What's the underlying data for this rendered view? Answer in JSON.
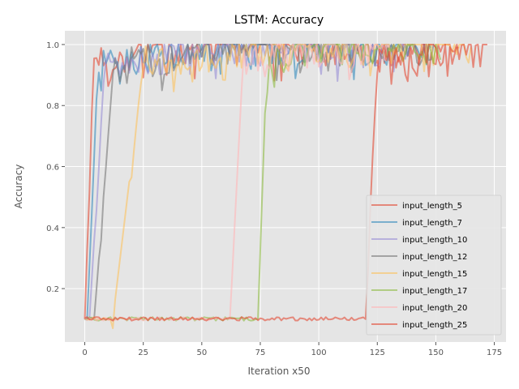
{
  "chart_data": {
    "type": "line",
    "title": "LSTM: Accuracy",
    "xlabel": "Iteration x50",
    "ylabel": "Accuracy",
    "xlim": [
      -8.5,
      180
    ],
    "ylim": [
      0.025,
      1.045
    ],
    "xticks": [
      0,
      25,
      50,
      75,
      100,
      125,
      150,
      175
    ],
    "yticks": [
      0.2,
      0.4,
      0.6,
      0.8,
      1.0
    ],
    "ytick_labels": [
      "0.2",
      "0.4",
      "0.6",
      "0.8",
      "1.0"
    ],
    "grid": true,
    "legend_position": "lower-right",
    "series": [
      {
        "name": "input_length_5",
        "color": "#E24A33",
        "params": {
          "start": 0,
          "len": 4,
          "rise": 17,
          "end": 160,
          "final": 0.99
        }
      },
      {
        "name": "input_length_7",
        "color": "#348ABD",
        "params": {
          "start": 1,
          "len": 5,
          "rise": 20,
          "end": 148,
          "final": 0.99
        }
      },
      {
        "name": "input_length_10",
        "color": "#988ED5",
        "params": {
          "start": 2,
          "len": 7,
          "rise": 25,
          "end": 138,
          "final": 0.99
        }
      },
      {
        "name": "input_length_12",
        "color": "#777777",
        "params": {
          "start": 4,
          "len": 9,
          "rise": 30,
          "end": 150,
          "final": 0.99
        }
      },
      {
        "name": "input_length_15",
        "color": "#FBC15E",
        "params": {
          "start": 12,
          "len": 14,
          "rise": 36,
          "end": 165,
          "final": 0.99
        }
      },
      {
        "name": "input_length_17",
        "color": "#8EBA42",
        "params": {
          "start": 74,
          "len": 4,
          "rise": 12,
          "end": 152,
          "final": 0.95
        }
      },
      {
        "name": "input_length_20",
        "color": "#FFB5B8",
        "params": {
          "start": 62,
          "len": 6,
          "rise": 12,
          "end": 130,
          "final": 0.99
        }
      },
      {
        "name": "input_length_25",
        "color": "#E24A33",
        "params": {
          "start": 120,
          "len": 5,
          "rise": 14,
          "end": 172,
          "final": 1.0
        }
      }
    ]
  }
}
